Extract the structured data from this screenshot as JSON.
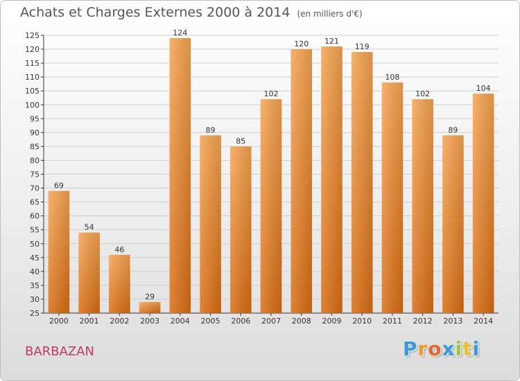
{
  "header": {
    "title": "Achats et Charges Externes 2000 à 2014",
    "subtitle": "(en milliers d'€)"
  },
  "footer": {
    "commune": "BARBAZAN",
    "logo_letters": [
      "P",
      "r",
      "o",
      "x",
      "i",
      "t",
      "i"
    ],
    "logo_colors": [
      "#3a9ad9",
      "#e89a2c",
      "#e06a2c",
      "#3a9ad9",
      "#9ac83a",
      "#e8c02c",
      "#3a9ad9"
    ]
  },
  "colors": {
    "bar_light": "#f7a552",
    "bar_dark": "#d96d14",
    "grid": "#cfcfcf",
    "axis": "#333333",
    "label": "#333333"
  },
  "chart_data": {
    "type": "bar",
    "categories": [
      "2000",
      "2001",
      "2002",
      "2003",
      "2004",
      "2005",
      "2006",
      "2007",
      "2008",
      "2009",
      "2010",
      "2011",
      "2012",
      "2013",
      "2014"
    ],
    "values": [
      69,
      54,
      46,
      29,
      124,
      89,
      85,
      102,
      120,
      121,
      119,
      108,
      102,
      89,
      104
    ],
    "ylim": [
      25,
      125
    ],
    "ytick_step": 5,
    "grid": true,
    "data_labels": true
  }
}
